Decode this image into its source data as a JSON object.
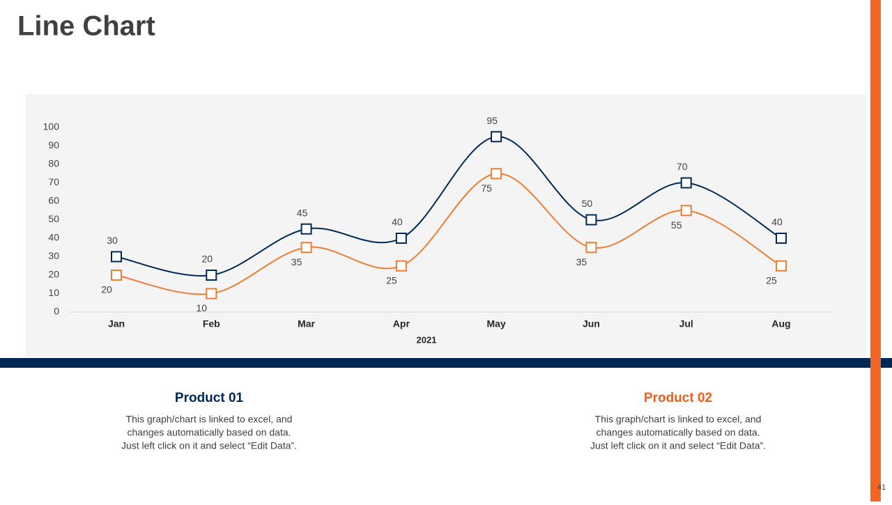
{
  "slide": {
    "title": "Line Chart",
    "page_number": "41",
    "products": [
      {
        "name": "Product 01",
        "color": "#002855",
        "description": [
          "This graph/chart is linked to excel, and",
          "changes automatically based on data.",
          "Just left click on it and select “Edit Data”."
        ]
      },
      {
        "name": "Product 02",
        "color": "#e8601c",
        "description": [
          "This graph/chart is linked to excel, and",
          "changes automatically based on data.",
          "Just left click on it and select “Edit Data”."
        ]
      }
    ]
  },
  "chart_data": {
    "type": "line",
    "x_label": "2021",
    "categories": [
      "Jan",
      "Feb",
      "Mar",
      "Apr",
      "May",
      "Jun",
      "Jul",
      "Aug"
    ],
    "series": [
      {
        "name": "Product 01",
        "color": "#002855",
        "values": [
          30,
          20,
          45,
          40,
          95,
          50,
          70,
          40
        ]
      },
      {
        "name": "Product 02",
        "color": "#ed7d31",
        "values": [
          20,
          10,
          35,
          25,
          75,
          35,
          55,
          25
        ]
      }
    ],
    "ylim": [
      0,
      100
    ],
    "yticks": [
      0,
      10,
      20,
      30,
      40,
      50,
      60,
      70,
      80,
      90,
      100
    ],
    "grid": false,
    "smooth": true
  }
}
